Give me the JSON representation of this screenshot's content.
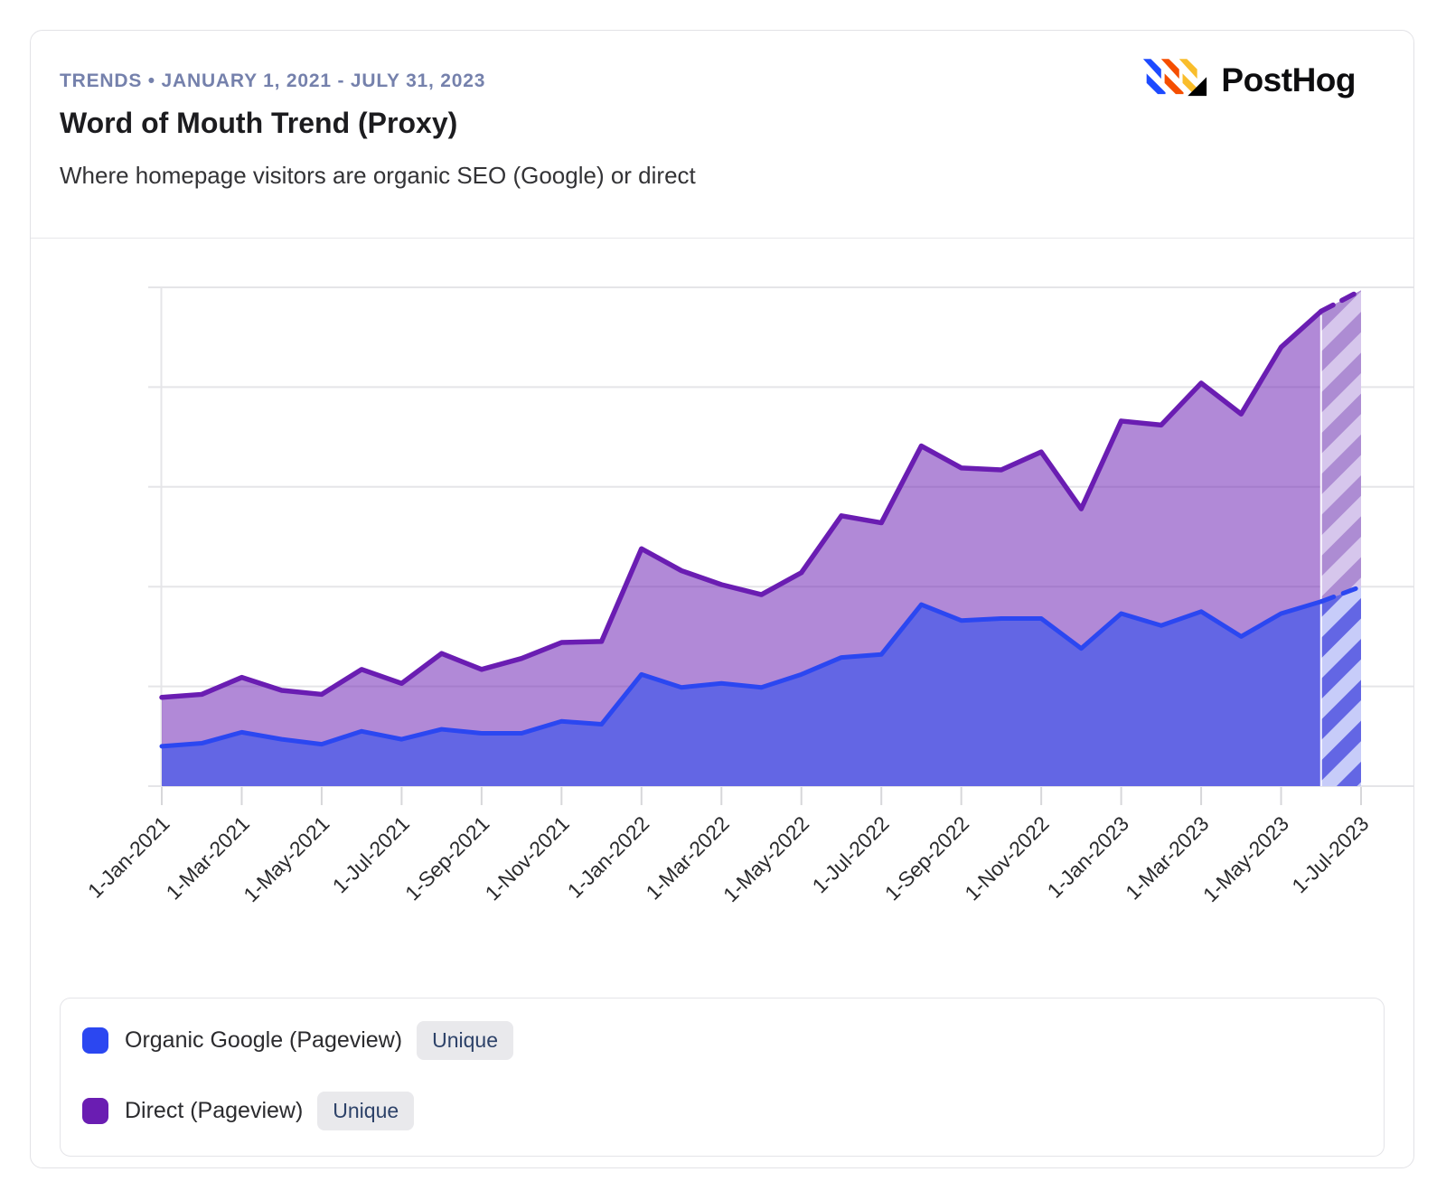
{
  "header": {
    "eyebrow": "TRENDS • JANUARY 1, 2021 - JULY 31, 2023",
    "title": "Word of Mouth Trend (Proxy)",
    "subtitle": "Where homepage visitors are organic SEO (Google) or direct",
    "brand": "PostHog"
  },
  "brand_colors": {
    "logo_blue": "#1d4aff",
    "logo_orange": "#f54e00",
    "logo_yellow": "#f9bd2b",
    "logo_black": "#000000"
  },
  "legend": [
    {
      "label": "Organic Google (Pageview)",
      "badge": "Unique",
      "color": "#2b47f1"
    },
    {
      "label": "Direct (Pageview)",
      "badge": "Unique",
      "color": "#6a1db2"
    }
  ],
  "chart_data": {
    "type": "area",
    "stacked": true,
    "title": "Word of Mouth Trend (Proxy)",
    "xlabel": "",
    "ylabel": "",
    "y_axis_labels_visible": false,
    "y_gridline_interval": 100,
    "ylim": [
      0,
      500
    ],
    "grid": "horizontal",
    "legend_position": "bottom",
    "note": "Final month segment (Jun→Jul 2023) is provisional: dashed line and hatched fill. Values are relative units estimated from gridlines (one gridline = 100).",
    "x": [
      "1-Jan-2021",
      "1-Feb-2021",
      "1-Mar-2021",
      "1-Apr-2021",
      "1-May-2021",
      "1-Jun-2021",
      "1-Jul-2021",
      "1-Aug-2021",
      "1-Sep-2021",
      "1-Oct-2021",
      "1-Nov-2021",
      "1-Dec-2021",
      "1-Jan-2022",
      "1-Feb-2022",
      "1-Mar-2022",
      "1-Apr-2022",
      "1-May-2022",
      "1-Jun-2022",
      "1-Jul-2022",
      "1-Aug-2022",
      "1-Sep-2022",
      "1-Oct-2022",
      "1-Nov-2022",
      "1-Dec-2022",
      "1-Jan-2023",
      "1-Feb-2023",
      "1-Mar-2023",
      "1-Apr-2023",
      "1-May-2023",
      "1-Jun-2023",
      "1-Jul-2023"
    ],
    "x_tick_labels": [
      "1-Jan-2021",
      "1-Mar-2021",
      "1-May-2021",
      "1-Jul-2021",
      "1-Sep-2021",
      "1-Nov-2021",
      "1-Jan-2022",
      "1-Mar-2022",
      "1-May-2022",
      "1-Jul-2022",
      "1-Sep-2022",
      "1-Nov-2022",
      "1-Jan-2023",
      "1-Mar-2023",
      "1-May-2023",
      "1-Jul-2023"
    ],
    "series": [
      {
        "name": "Organic Google (Pageview)",
        "mode": "Unique",
        "line_color": "#2b47f1",
        "fill_color": "#6366e4",
        "hatch_light": "#c7ccf9",
        "values": [
          40,
          43,
          54,
          47,
          42,
          55,
          47,
          57,
          53,
          53,
          65,
          62,
          112,
          99,
          103,
          99,
          112,
          129,
          132,
          182,
          166,
          168,
          168,
          138,
          173,
          161,
          175,
          150,
          173,
          185,
          200
        ]
      },
      {
        "name": "Direct (Pageview)",
        "mode": "Unique",
        "line_color": "#6a1db2",
        "fill_color": "#ad8cd3",
        "hatch_light": "#d6c6ec",
        "values": [
          49,
          49,
          55,
          49,
          50,
          62,
          56,
          76,
          64,
          75,
          79,
          83,
          126,
          117,
          99,
          93,
          102,
          142,
          132,
          159,
          153,
          149,
          167,
          140,
          193,
          201,
          229,
          223,
          267,
          291,
          297
        ]
      }
    ]
  }
}
